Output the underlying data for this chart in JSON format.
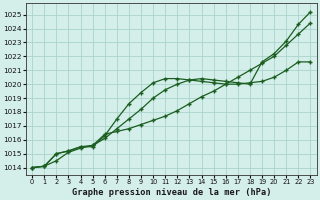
{
  "title": "Graphe pression niveau de la mer (hPa)",
  "bg_color": "#d4eeea",
  "grid_color": "#aad4cc",
  "line_color": "#1a5e20",
  "xlim": [
    -0.5,
    23.5
  ],
  "ylim": [
    1013.5,
    1025.8
  ],
  "yticks": [
    1014,
    1015,
    1016,
    1017,
    1018,
    1019,
    1020,
    1021,
    1022,
    1023,
    1024,
    1025
  ],
  "xticks": [
    0,
    1,
    2,
    3,
    4,
    5,
    6,
    7,
    8,
    9,
    10,
    11,
    12,
    13,
    14,
    15,
    16,
    17,
    18,
    19,
    20,
    21,
    22,
    23
  ],
  "series": [
    [
      1014.0,
      1014.1,
      1014.5,
      1015.1,
      1015.4,
      1015.6,
      1016.1,
      1016.8,
      1017.5,
      1018.2,
      1019.0,
      1019.6,
      1020.0,
      1020.3,
      1020.4,
      1020.3,
      1020.2,
      1020.1,
      1020.0,
      1021.6,
      1022.2,
      1023.1,
      1024.3,
      1025.2
    ],
    [
      1014.0,
      1014.1,
      1015.0,
      1015.2,
      1015.5,
      1015.5,
      1016.3,
      1017.5,
      1018.6,
      1019.4,
      1020.1,
      1020.4,
      1020.4,
      1020.3,
      1020.2,
      1020.1,
      1020.0,
      1020.0,
      1020.1,
      1020.2,
      1020.5,
      1021.0,
      1021.6,
      1021.6
    ],
    [
      1014.0,
      1014.1,
      1015.0,
      1015.2,
      1015.5,
      1015.6,
      1016.4,
      1016.6,
      1016.8,
      1017.1,
      1017.4,
      1017.7,
      1018.1,
      1018.6,
      1019.1,
      1019.5,
      1020.0,
      1020.5,
      1021.0,
      1021.5,
      1022.0,
      1022.8,
      1023.6,
      1024.4
    ]
  ]
}
